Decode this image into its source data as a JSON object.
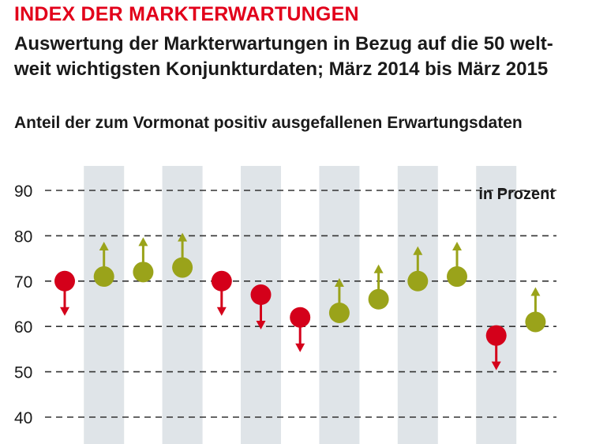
{
  "header": {
    "title": "INDEX DER MARKTERWARTUNGEN",
    "subtitle_line1": "Auswertung der Markterwartungen in Bezug auf die 50 welt-",
    "subtitle_line2": "weit wichtigsten Konjunkturdaten; März 2014 bis März 2015",
    "caption": "Anteil der zum Vormonat positiv ausgefallenen Erwartungsdaten"
  },
  "colors": {
    "up": "#9aa31a",
    "down": "#d4001a",
    "band": "#dfe4e8",
    "grid": "#333333"
  },
  "chart_data": {
    "type": "scatter",
    "title": "Anteil der zum Vormonat positiv ausgefallenen Erwartungsdaten",
    "unit_label": "in Prozent",
    "ylim": [
      40,
      90
    ],
    "yticks": [
      90,
      80,
      70,
      60,
      50,
      40
    ],
    "ytick_labels": [
      "90",
      "80",
      "70",
      "60",
      "50",
      "40"
    ],
    "grid": true,
    "grid_style": "dashed",
    "shaded_columns": [
      1,
      3,
      5,
      7,
      9,
      11
    ],
    "points": [
      {
        "value": 70,
        "direction": "down"
      },
      {
        "value": 71,
        "direction": "up"
      },
      {
        "value": 72,
        "direction": "up"
      },
      {
        "value": 73,
        "direction": "up"
      },
      {
        "value": 70,
        "direction": "down"
      },
      {
        "value": 67,
        "direction": "down"
      },
      {
        "value": 62,
        "direction": "down"
      },
      {
        "value": 63,
        "direction": "up"
      },
      {
        "value": 66,
        "direction": "up"
      },
      {
        "value": 70,
        "direction": "up"
      },
      {
        "value": 71,
        "direction": "up"
      },
      {
        "value": 58,
        "direction": "down"
      },
      {
        "value": 61,
        "direction": "up"
      }
    ]
  }
}
